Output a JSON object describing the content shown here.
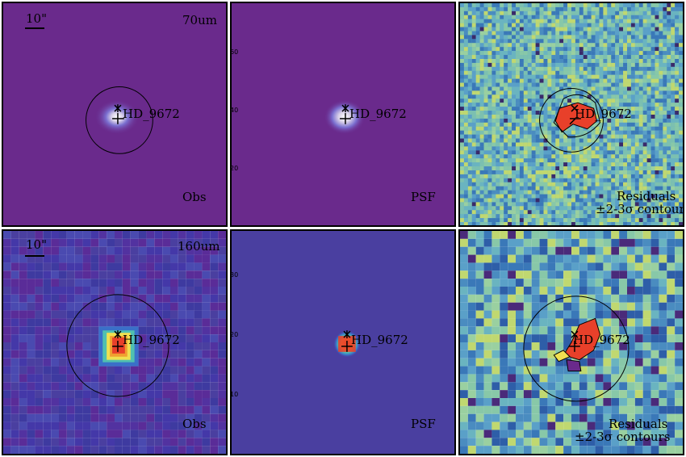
{
  "source_name": "HD_9672",
  "rows": [
    {
      "band_label": "70um",
      "scale_label": "10\"",
      "panels": [
        {
          "id": "obs",
          "corner_label": "Obs",
          "colormap": "purple-bg",
          "has_grid": false
        },
        {
          "id": "psf",
          "corner_label": "PSF",
          "colormap": "purple-bg",
          "has_grid": false
        },
        {
          "id": "resid",
          "corner_label_line1": "Residuals",
          "corner_label_line2": "±2-3σ contours",
          "colormap": "residual"
        }
      ],
      "axis_ticks": [
        "60",
        "40",
        "20"
      ]
    },
    {
      "band_label": "160um",
      "scale_label": "10\"",
      "panels": [
        {
          "id": "obs",
          "corner_label": "Obs"
        },
        {
          "id": "psf",
          "corner_label": "PSF"
        },
        {
          "id": "resid",
          "corner_label_line1": "Residuals",
          "corner_label_line2": "±2-3σ contours"
        }
      ],
      "axis_ticks": [
        "30",
        "20",
        "10"
      ]
    }
  ],
  "colors": {
    "background_purple": "#6a2a8c",
    "background_blue": "#4a3fa0",
    "core_red": "#e8402a",
    "contour": "#000000"
  }
}
